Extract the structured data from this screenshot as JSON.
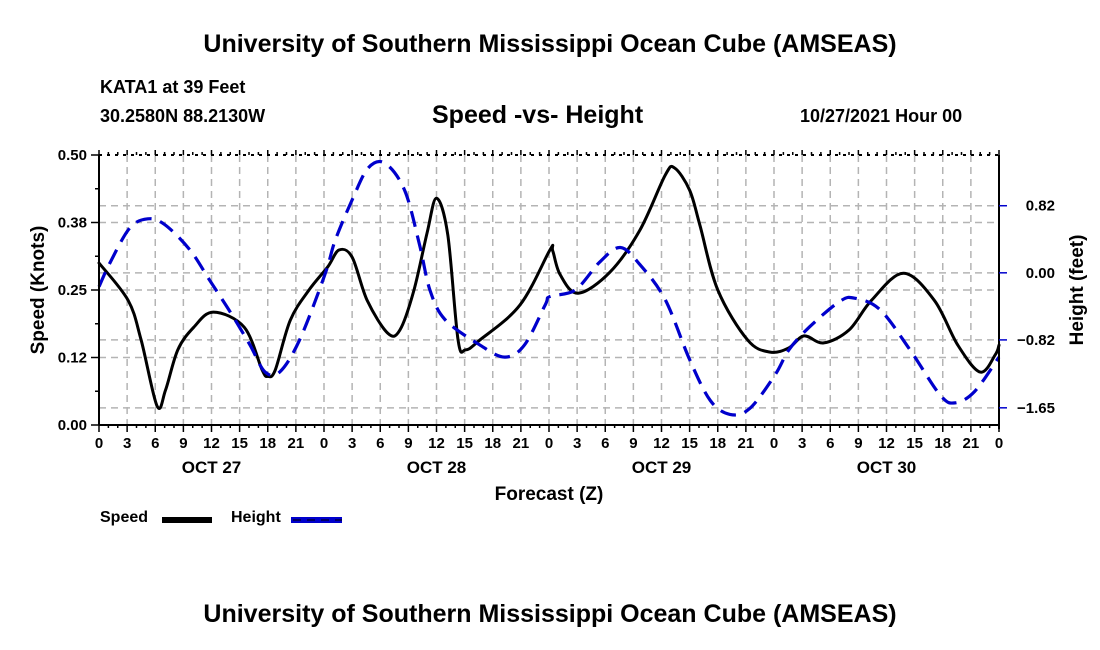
{
  "header": {
    "main_title": "University of Southern Mississippi Ocean Cube (AMSEAS)",
    "station": "KATA1 at 39 Feet",
    "coords": "30.2580N  88.2130W",
    "subtitle": "Speed -vs- Height",
    "datetime": "10/27/2021 Hour 00"
  },
  "footer": {
    "title": "University of Southern Mississippi Ocean Cube (AMSEAS)"
  },
  "legend": {
    "speed_label": "Speed",
    "height_label": "Height"
  },
  "colors": {
    "speed": "#000000",
    "height": "#0000cc",
    "grid": "#b4b4b4"
  },
  "chart_data": {
    "type": "line",
    "title": "Speed -vs- Height",
    "xlabel": "Forecast (Z)",
    "ylabel": "Speed (Knots)",
    "y2label": "Height (feet)",
    "xlim": [
      0,
      96
    ],
    "ylim": [
      0,
      0.5
    ],
    "y2lim": [
      -1.86,
      1.44
    ],
    "grid": true,
    "legend_position": "bottom-left",
    "x_ticks": [
      0,
      3,
      6,
      9,
      12,
      15,
      18,
      21,
      24,
      27,
      30,
      33,
      36,
      39,
      42,
      45,
      48,
      51,
      54,
      57,
      60,
      63,
      66,
      69,
      72,
      75,
      78,
      81,
      84,
      87,
      90,
      93,
      96
    ],
    "x_tick_labels": [
      "0",
      "3",
      "6",
      "9",
      "12",
      "15",
      "18",
      "21",
      "0",
      "3",
      "6",
      "9",
      "12",
      "15",
      "18",
      "21",
      "0",
      "3",
      "6",
      "9",
      "12",
      "15",
      "18",
      "21",
      "0",
      "3",
      "6",
      "9",
      "12",
      "15",
      "18",
      "21",
      "0"
    ],
    "day_labels": [
      {
        "hour": 12,
        "label": "OCT 27"
      },
      {
        "hour": 36,
        "label": "OCT 28"
      },
      {
        "hour": 60,
        "label": "OCT 29"
      },
      {
        "hour": 84,
        "label": "OCT 30"
      }
    ],
    "y_ticks": [
      0,
      0.125,
      0.25,
      0.375,
      0.5
    ],
    "y_tick_labels": [
      "0.00",
      "0.12",
      "0.25",
      "0.38",
      "0.50"
    ],
    "y2_ticks": [
      0.82,
      0,
      -0.82,
      -1.65
    ],
    "y2_tick_labels": [
      "0.82",
      "0.00",
      "−0.82",
      "−1.65"
    ],
    "series": [
      {
        "name": "Speed",
        "axis": "left",
        "style": "solid",
        "points": [
          [
            0,
            0.3
          ],
          [
            3.1,
            0.231
          ],
          [
            4.5,
            0.157
          ],
          [
            6.2,
            0.035
          ],
          [
            7.1,
            0.065
          ],
          [
            8.4,
            0.139
          ],
          [
            10.1,
            0.181
          ],
          [
            12.2,
            0.209
          ],
          [
            15.5,
            0.181
          ],
          [
            17.4,
            0.102
          ],
          [
            18.0,
            0.09
          ],
          [
            18.8,
            0.102
          ],
          [
            20.4,
            0.194
          ],
          [
            22.4,
            0.25
          ],
          [
            24.4,
            0.293
          ],
          [
            25.6,
            0.324
          ],
          [
            27.0,
            0.311
          ],
          [
            28.6,
            0.231
          ],
          [
            30.8,
            0.17
          ],
          [
            32.1,
            0.176
          ],
          [
            33.6,
            0.25
          ],
          [
            35.0,
            0.356
          ],
          [
            36.0,
            0.42
          ],
          [
            37.2,
            0.352
          ],
          [
            38.3,
            0.157
          ],
          [
            39.1,
            0.139
          ],
          [
            40.6,
            0.157
          ],
          [
            44.9,
            0.222
          ],
          [
            48.1,
            0.324
          ],
          [
            48.4,
            0.322
          ],
          [
            49.2,
            0.278
          ],
          [
            51.1,
            0.244
          ],
          [
            54.5,
            0.283
          ],
          [
            57.7,
            0.361
          ],
          [
            60.4,
            0.463
          ],
          [
            61.4,
            0.476
          ],
          [
            63.0,
            0.435
          ],
          [
            64.1,
            0.37
          ],
          [
            66.0,
            0.25
          ],
          [
            69.2,
            0.157
          ],
          [
            71.6,
            0.135
          ],
          [
            73.6,
            0.143
          ],
          [
            75.2,
            0.165
          ],
          [
            77.3,
            0.152
          ],
          [
            80.0,
            0.176
          ],
          [
            82.4,
            0.231
          ],
          [
            85.8,
            0.281
          ],
          [
            89.1,
            0.231
          ],
          [
            91.6,
            0.148
          ],
          [
            94.0,
            0.098
          ],
          [
            95.6,
            0.13
          ],
          [
            96,
            0.148
          ]
        ]
      },
      {
        "name": "Height",
        "axis": "right",
        "style": "dashed",
        "points": [
          [
            0,
            -0.17
          ],
          [
            1.2,
            0.13
          ],
          [
            3.3,
            0.55
          ],
          [
            5.2,
            0.66
          ],
          [
            7.0,
            0.59
          ],
          [
            9.7,
            0.28
          ],
          [
            11.8,
            -0.09
          ],
          [
            14.0,
            -0.48
          ],
          [
            16.1,
            -0.88
          ],
          [
            17.7,
            -1.21
          ],
          [
            19.3,
            -1.21
          ],
          [
            21.4,
            -0.82
          ],
          [
            24.1,
            -0.02
          ],
          [
            25.2,
            0.4
          ],
          [
            27.0,
            0.89
          ],
          [
            28.7,
            1.28
          ],
          [
            30.5,
            1.34
          ],
          [
            32.6,
            1.01
          ],
          [
            34.2,
            0.34
          ],
          [
            35.3,
            -0.21
          ],
          [
            36.9,
            -0.57
          ],
          [
            40.6,
            -0.88
          ],
          [
            43.3,
            -1.03
          ],
          [
            45.4,
            -0.88
          ],
          [
            47.6,
            -0.39
          ],
          [
            48.1,
            -0.29
          ],
          [
            50.8,
            -0.21
          ],
          [
            53.4,
            0.13
          ],
          [
            55.6,
            0.31
          ],
          [
            57.7,
            0.1
          ],
          [
            60.4,
            -0.33
          ],
          [
            63.0,
            -1.06
          ],
          [
            65.2,
            -1.56
          ],
          [
            67.3,
            -1.73
          ],
          [
            69.4,
            -1.66
          ],
          [
            72.1,
            -1.25
          ],
          [
            73.6,
            -0.94
          ],
          [
            75.8,
            -0.66
          ],
          [
            79.0,
            -0.35
          ],
          [
            80.6,
            -0.31
          ],
          [
            83.3,
            -0.45
          ],
          [
            86.5,
            -0.94
          ],
          [
            89.7,
            -1.49
          ],
          [
            91.3,
            -1.59
          ],
          [
            93.4,
            -1.45
          ],
          [
            96,
            -1.03
          ]
        ]
      }
    ]
  }
}
